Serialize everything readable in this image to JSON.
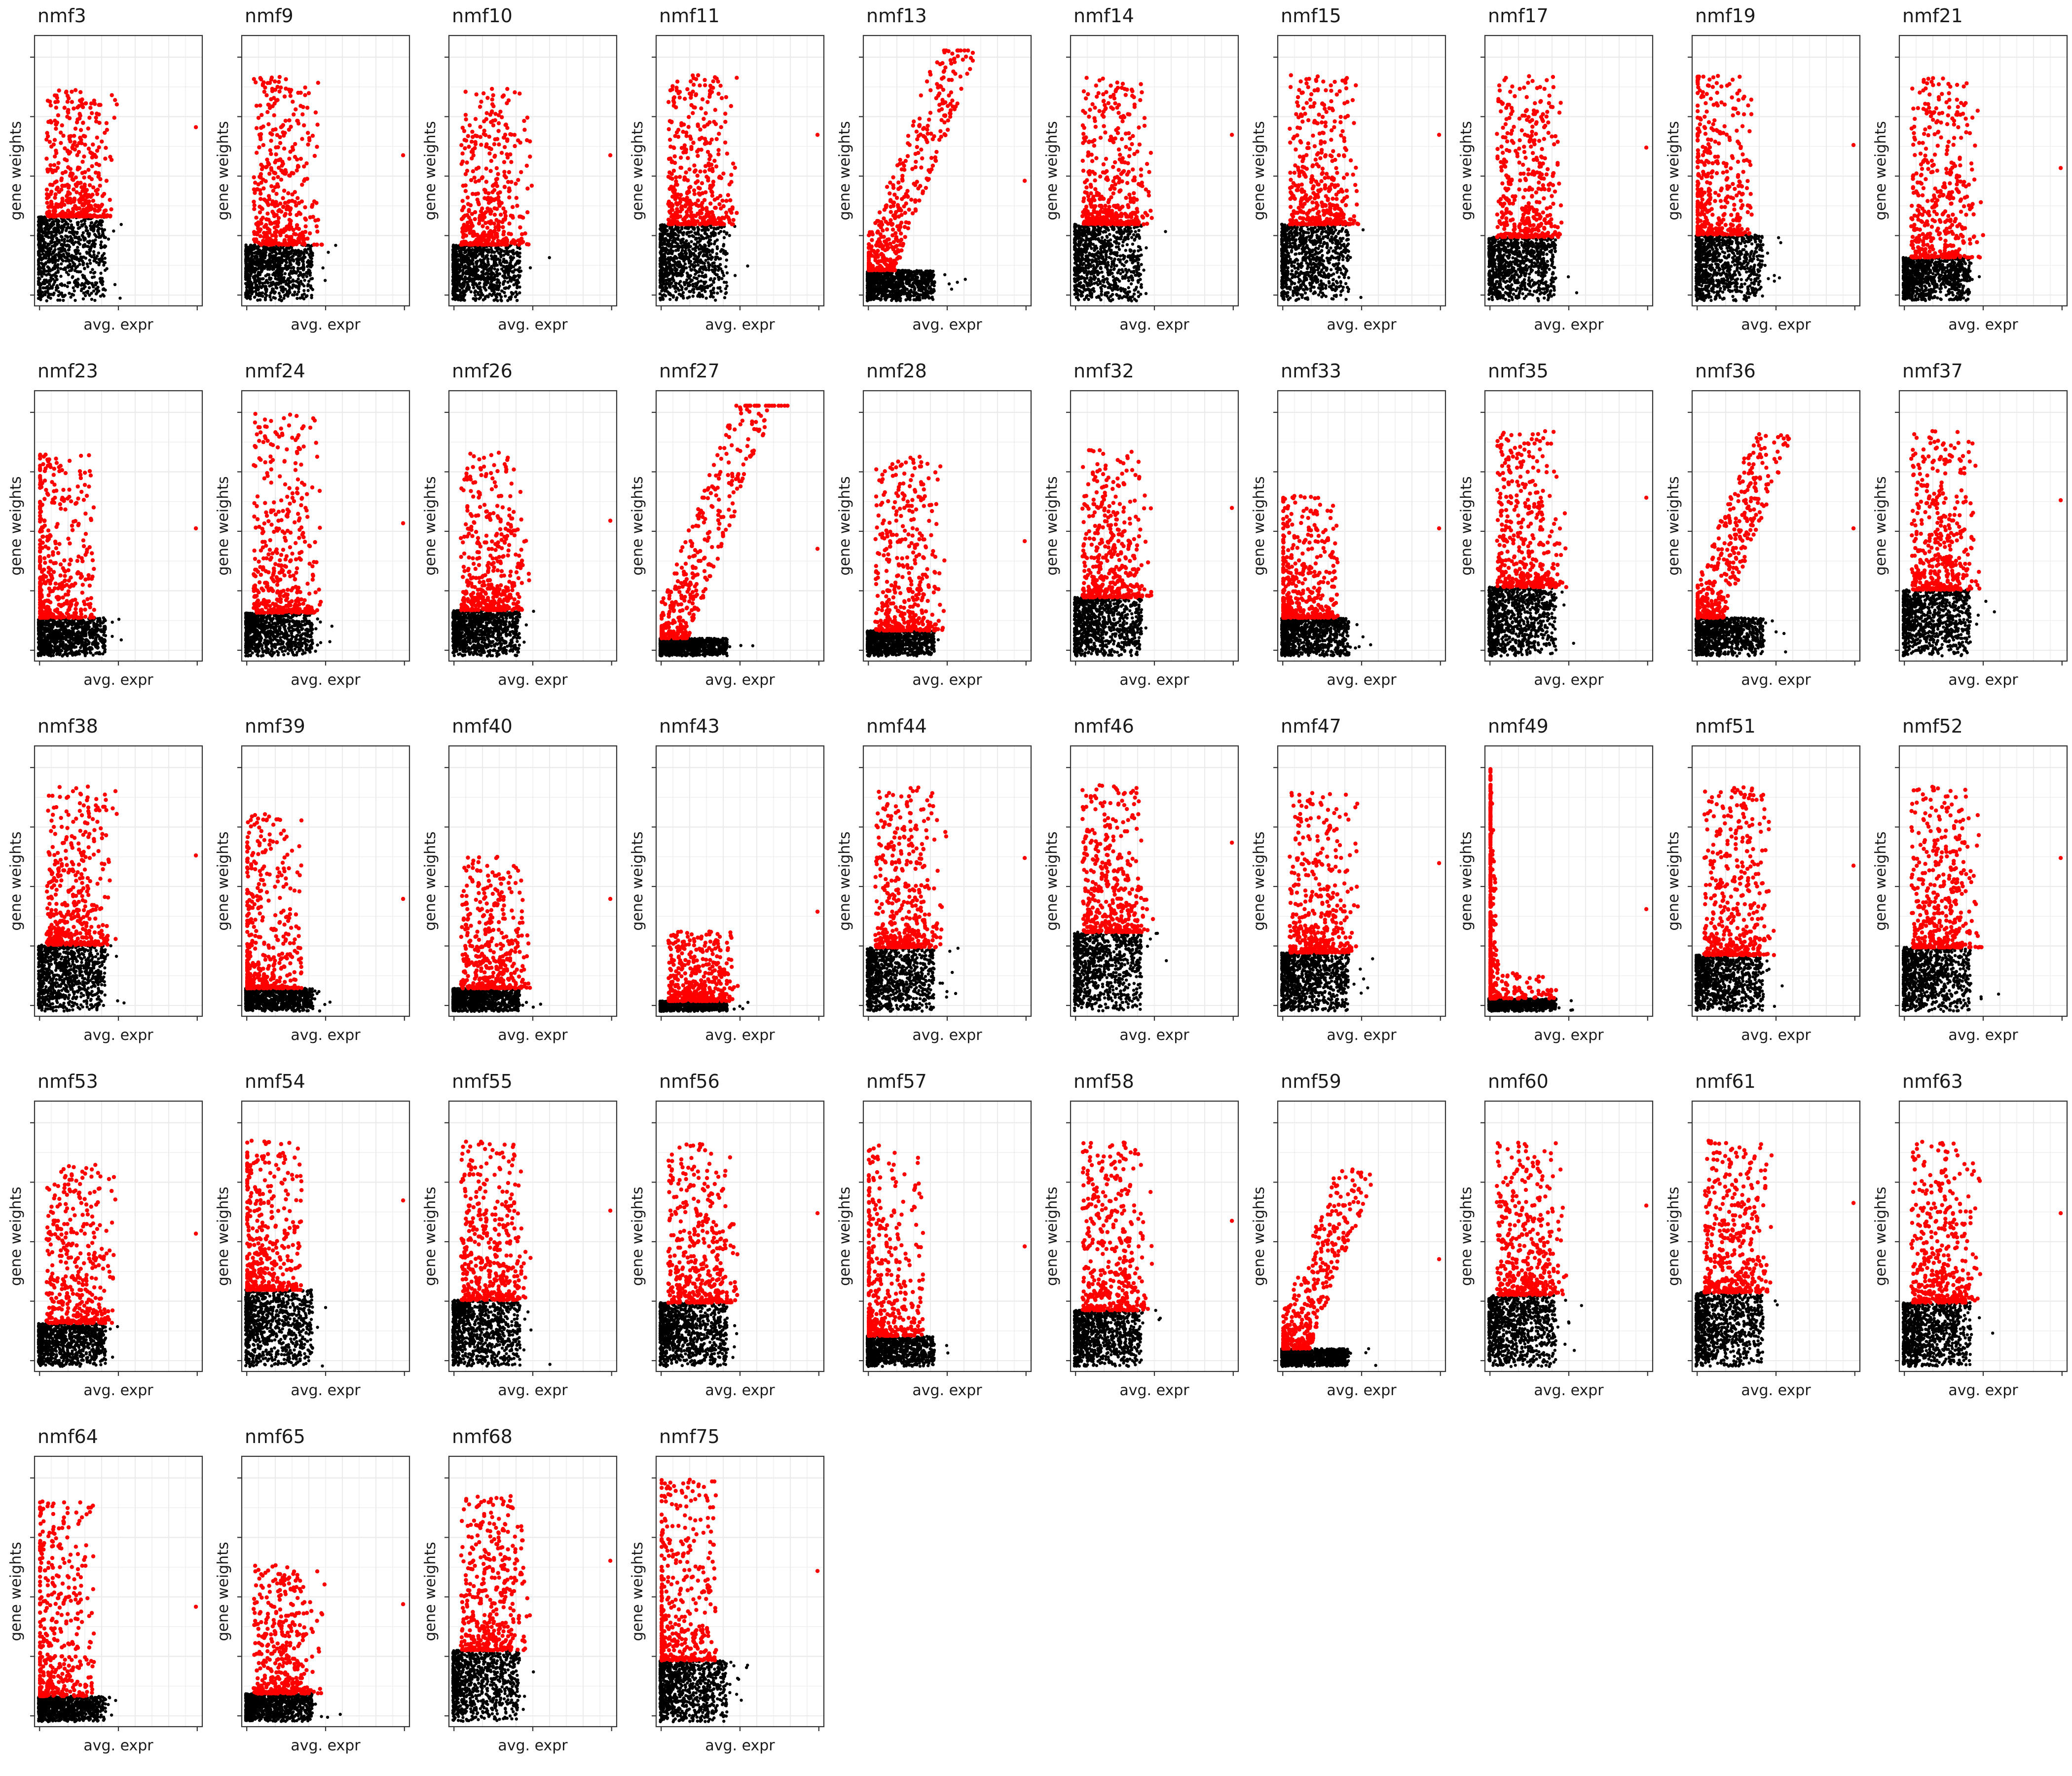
{
  "chart_data": {
    "type": "scatter",
    "layout": "facet-grid",
    "xlabel": "avg. expr",
    "ylabel": "gene weights",
    "colors": {
      "selected": "#ff0000",
      "other": "#000000",
      "grid": "#ebebeb",
      "border": "#333333"
    },
    "facets": [
      {
        "title": "nmf3",
        "threshold": 0.33,
        "spread": 0.4,
        "shape": "normal"
      },
      {
        "title": "nmf9",
        "threshold": 0.22,
        "spread": 0.45,
        "shape": "normal"
      },
      {
        "title": "nmf10",
        "threshold": 0.22,
        "spread": 0.42,
        "shape": "normal"
      },
      {
        "title": "nmf11",
        "threshold": 0.3,
        "spread": 0.45,
        "shape": "normal"
      },
      {
        "title": "nmf13",
        "threshold": 0.12,
        "spread": 0.55,
        "shape": "rising"
      },
      {
        "title": "nmf14",
        "threshold": 0.3,
        "spread": 0.45,
        "shape": "normal"
      },
      {
        "title": "nmf15",
        "threshold": 0.3,
        "spread": 0.45,
        "shape": "normal"
      },
      {
        "title": "nmf17",
        "threshold": 0.25,
        "spread": 0.45,
        "shape": "normal"
      },
      {
        "title": "nmf19",
        "threshold": 0.26,
        "spread": 0.45,
        "shape": "left"
      },
      {
        "title": "nmf21",
        "threshold": 0.17,
        "spread": 0.45,
        "shape": "normal"
      },
      {
        "title": "nmf23",
        "threshold": 0.15,
        "spread": 0.4,
        "shape": "left"
      },
      {
        "title": "nmf24",
        "threshold": 0.17,
        "spread": 0.5,
        "shape": "normal"
      },
      {
        "title": "nmf26",
        "threshold": 0.18,
        "spread": 0.4,
        "shape": "normal"
      },
      {
        "title": "nmf27",
        "threshold": 0.07,
        "spread": 0.6,
        "shape": "rising"
      },
      {
        "title": "nmf28",
        "threshold": 0.1,
        "spread": 0.4,
        "shape": "normal"
      },
      {
        "title": "nmf32",
        "threshold": 0.23,
        "spread": 0.4,
        "shape": "normal"
      },
      {
        "title": "nmf33",
        "threshold": 0.15,
        "spread": 0.3,
        "shape": "left"
      },
      {
        "title": "nmf35",
        "threshold": 0.27,
        "spread": 0.45,
        "shape": "normal"
      },
      {
        "title": "nmf36",
        "threshold": 0.15,
        "spread": 0.45,
        "shape": "rising"
      },
      {
        "title": "nmf37",
        "threshold": 0.26,
        "spread": 0.45,
        "shape": "normal"
      },
      {
        "title": "nmf38",
        "threshold": 0.26,
        "spread": 0.45,
        "shape": "normal"
      },
      {
        "title": "nmf39",
        "threshold": 0.09,
        "spread": 0.4,
        "shape": "left"
      },
      {
        "title": "nmf40",
        "threshold": 0.09,
        "spread": 0.3,
        "shape": "normal"
      },
      {
        "title": "nmf43",
        "threshold": 0.04,
        "spread": 0.15,
        "shape": "normal"
      },
      {
        "title": "nmf44",
        "threshold": 0.25,
        "spread": 0.45,
        "shape": "normal"
      },
      {
        "title": "nmf46",
        "threshold": 0.31,
        "spread": 0.45,
        "shape": "normal"
      },
      {
        "title": "nmf47",
        "threshold": 0.23,
        "spread": 0.45,
        "shape": "normal"
      },
      {
        "title": "nmf49",
        "threshold": 0.05,
        "spread": 0.5,
        "shape": "spike"
      },
      {
        "title": "nmf51",
        "threshold": 0.22,
        "spread": 0.45,
        "shape": "normal"
      },
      {
        "title": "nmf52",
        "threshold": 0.25,
        "spread": 0.45,
        "shape": "normal"
      },
      {
        "title": "nmf53",
        "threshold": 0.17,
        "spread": 0.4,
        "shape": "normal"
      },
      {
        "title": "nmf54",
        "threshold": 0.3,
        "spread": 0.45,
        "shape": "left"
      },
      {
        "title": "nmf55",
        "threshold": 0.26,
        "spread": 0.45,
        "shape": "normal"
      },
      {
        "title": "nmf56",
        "threshold": 0.25,
        "spread": 0.45,
        "shape": "normal"
      },
      {
        "title": "nmf57",
        "threshold": 0.12,
        "spread": 0.45,
        "shape": "left"
      },
      {
        "title": "nmf58",
        "threshold": 0.22,
        "spread": 0.45,
        "shape": "normal"
      },
      {
        "title": "nmf59",
        "threshold": 0.07,
        "spread": 0.4,
        "shape": "rising"
      },
      {
        "title": "nmf60",
        "threshold": 0.28,
        "spread": 0.45,
        "shape": "normal"
      },
      {
        "title": "nmf61",
        "threshold": 0.29,
        "spread": 0.45,
        "shape": "normal"
      },
      {
        "title": "nmf63",
        "threshold": 0.25,
        "spread": 0.45,
        "shape": "normal"
      },
      {
        "title": "nmf64",
        "threshold": 0.1,
        "spread": 0.45,
        "shape": "left"
      },
      {
        "title": "nmf65",
        "threshold": 0.11,
        "spread": 0.3,
        "shape": "normal"
      },
      {
        "title": "nmf68",
        "threshold": 0.28,
        "spread": 0.45,
        "shape": "normal"
      },
      {
        "title": "nmf75",
        "threshold": 0.24,
        "spread": 0.5,
        "shape": "left"
      }
    ]
  }
}
